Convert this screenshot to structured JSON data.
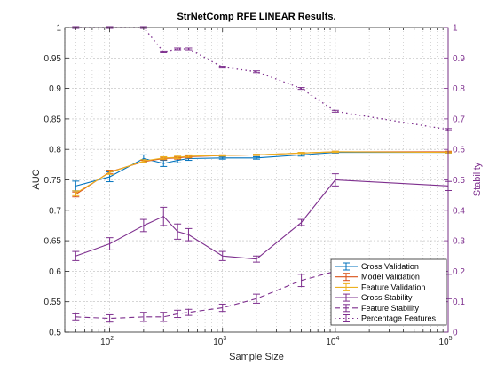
{
  "chart_data": {
    "type": "line",
    "title": "StrNetComp RFE LINEAR Results.",
    "xlabel": "Sample Size",
    "ylabel": "AUC",
    "y2label": "Stability",
    "xscale": "log",
    "xlim": [
      40,
      100000
    ],
    "ylim": [
      0.5,
      1.0
    ],
    "y2lim": [
      0,
      1.0
    ],
    "grid": true,
    "legend_position": "bottom-right",
    "x_ticks": [
      {
        "value": 100,
        "label": "10",
        "exp": "2"
      },
      {
        "value": 1000,
        "label": "10",
        "exp": "3"
      },
      {
        "value": 10000,
        "label": "10",
        "exp": "4"
      },
      {
        "value": 100000,
        "label": "10",
        "exp": "5"
      }
    ],
    "y_ticks": [
      "0.5",
      "0.55",
      "0.6",
      "0.65",
      "0.7",
      "0.75",
      "0.8",
      "0.85",
      "0.9",
      "0.95",
      "1"
    ],
    "y2_ticks": [
      "0",
      "0.1",
      "0.2",
      "0.3",
      "0.4",
      "0.5",
      "0.6",
      "0.7",
      "0.8",
      "0.9",
      "1"
    ],
    "x": [
      50,
      100,
      200,
      300,
      400,
      500,
      1000,
      2000,
      5000,
      10000,
      100000
    ],
    "series": [
      {
        "name": "Cross Validation",
        "axis": "left",
        "color": "#0072BD",
        "dash": "solid",
        "values": [
          0.74,
          0.755,
          0.785,
          0.777,
          0.782,
          0.785,
          0.786,
          0.786,
          0.791,
          0.795,
          0.795
        ],
        "errors": [
          0.008,
          0.008,
          0.006,
          0.005,
          0.004,
          0.003,
          0.002,
          0.002,
          0.002,
          0.001,
          0.001
        ]
      },
      {
        "name": "Model Validation",
        "axis": "left",
        "color": "#D95319",
        "dash": "solid",
        "values": [
          0.726,
          0.763,
          0.78,
          0.785,
          0.786,
          0.788,
          0.79,
          0.791,
          0.794,
          0.796,
          0.796
        ],
        "errors": [
          0.004,
          0.003,
          0.002,
          0.002,
          0.002,
          0.002,
          0.001,
          0.001,
          0.001,
          0.001,
          0.001
        ]
      },
      {
        "name": "Feature Validation",
        "axis": "left",
        "color": "#EDB120",
        "dash": "solid",
        "values": [
          0.728,
          0.762,
          0.781,
          0.786,
          0.787,
          0.789,
          0.79,
          0.791,
          0.794,
          0.796,
          0.795
        ],
        "errors": [
          0.004,
          0.003,
          0.002,
          0.002,
          0.002,
          0.002,
          0.001,
          0.001,
          0.001,
          0.001,
          0.001
        ]
      },
      {
        "name": "Cross Stability",
        "axis": "right",
        "color": "#7E2F8E",
        "dash": "solid",
        "values": [
          0.25,
          0.29,
          0.35,
          0.38,
          0.33,
          0.32,
          0.25,
          0.24,
          0.36,
          0.5,
          0.48
        ],
        "errors": [
          0.015,
          0.02,
          0.02,
          0.03,
          0.025,
          0.02,
          0.015,
          0.01,
          0.01,
          0.02,
          0.015
        ]
      },
      {
        "name": "Feature Stability",
        "axis": "right",
        "color": "#7E2F8E",
        "dash": "dash",
        "values": [
          0.05,
          0.045,
          0.05,
          0.05,
          0.06,
          0.065,
          0.08,
          0.11,
          0.17,
          0.2,
          0.15
        ],
        "errors": [
          0.01,
          0.012,
          0.015,
          0.015,
          0.012,
          0.01,
          0.012,
          0.015,
          0.02,
          0.025,
          0.04
        ]
      },
      {
        "name": "Percentage Features",
        "axis": "right",
        "color": "#7E2F8E",
        "dash": "dot",
        "values": [
          1.0,
          1.0,
          1.0,
          0.92,
          0.93,
          0.93,
          0.87,
          0.855,
          0.8,
          0.725,
          0.665
        ],
        "errors": [
          0.003,
          0.003,
          0.003,
          0.003,
          0.003,
          0.003,
          0.003,
          0.003,
          0.003,
          0.003,
          0.003
        ]
      }
    ]
  },
  "colors": {
    "axis": "#262626",
    "right_axis": "#7E2F8E",
    "grid": "#bdbdbd"
  }
}
